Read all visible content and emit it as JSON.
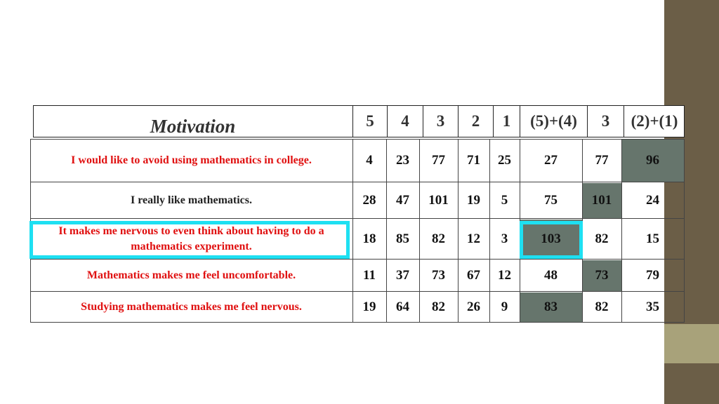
{
  "header": {
    "motivation_label": "Motivation",
    "columns": [
      "5",
      "4",
      "3",
      "2",
      "1",
      "(5)+(4)",
      "3",
      "(2)+(1)"
    ]
  },
  "rows": [
    {
      "label": "I would like to avoid using mathematics in college.",
      "label_color": "red",
      "values": [
        "4",
        "23",
        "77",
        "71",
        "25",
        "27",
        "77",
        "96"
      ],
      "highlight_col": 7
    },
    {
      "label": "I really like mathematics.",
      "label_color": "dark",
      "values": [
        "28",
        "47",
        "101",
        "19",
        "5",
        "75",
        "101",
        "24"
      ],
      "highlight_col": 6
    },
    {
      "label": "It makes me nervous to even think about having to do a mathematics experiment.",
      "label_color": "red",
      "values": [
        "18",
        "85",
        "82",
        "12",
        "3",
        "103",
        "82",
        "15"
      ],
      "highlight_col": 5
    },
    {
      "label": "Mathematics makes me feel uncomfortable.",
      "label_color": "red",
      "values": [
        "11",
        "37",
        "73",
        "67",
        "12",
        "48",
        "73",
        "79"
      ],
      "highlight_col": 6
    },
    {
      "label": "Studying mathematics makes me feel nervous.",
      "label_color": "red",
      "values": [
        "19",
        "64",
        "82",
        "26",
        "9",
        "83",
        "82",
        "35"
      ],
      "highlight_col": 5
    }
  ],
  "colors": {
    "highlight": "#66756c",
    "emphasis_border": "#1ee0f2",
    "red_text": "#e01010",
    "side_bar": "#6b5e47",
    "side_accent": "#a8a27a"
  }
}
